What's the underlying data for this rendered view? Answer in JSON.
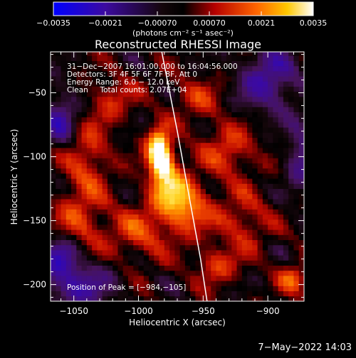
{
  "chart_data": {
    "type": "heatmap",
    "title": "Reconstructed RHESSI Image",
    "xlabel": "Heliocentric X (arcsec)",
    "ylabel": "Heliocentric Y (arcsec)",
    "xlim": [
      -1068,
      -872
    ],
    "ylim": [
      -213,
      -18
    ],
    "x_ticks": [
      -1050,
      -1000,
      -950,
      -900
    ],
    "y_ticks": [
      -50,
      -100,
      -150,
      -200
    ],
    "x_tick_labels": [
      "−1050",
      "−1000",
      "−950",
      "−900"
    ],
    "y_tick_labels": [
      "−50",
      "−100",
      "−150",
      "−200"
    ],
    "colorbar": {
      "min": -0.0035,
      "max": 0.0035,
      "ticks": [
        "−0.0035",
        "−0.0021",
        "−0.00070",
        "0.00070",
        "0.0021",
        "0.0035"
      ],
      "units_label": "(photons cm⁻² s⁻¹ asec⁻²)"
    },
    "annotations": [
      "31−Dec−2007 16:01:00.000 to 16:04:56.000",
      "Detectors: 3F 4F 5F 6F 7F 8F, Att 0",
      "Energy Range: 6.0 − 12.0 keV",
      "Clean     Total counts: 2.07E+04"
    ],
    "peak_label": "Position of Peak = [−984,−105]",
    "peak": [
      -984,
      -105
    ],
    "limb_curve": [
      [
        -982,
        -18
      ],
      [
        -970,
        -80
      ],
      [
        -961,
        -130
      ],
      [
        -952,
        -180
      ],
      [
        -947,
        -213
      ]
    ],
    "sources": [
      {
        "x": -982,
        "y": -103,
        "amp": 0.0035,
        "sx": 7,
        "sy": 12
      },
      {
        "x": -985,
        "y": -90,
        "amp": 0.0022,
        "sx": 6,
        "sy": 10
      },
      {
        "x": -965,
        "y": -140,
        "amp": 0.0022,
        "sx": 14,
        "sy": 14
      },
      {
        "x": -975,
        "y": -125,
        "amp": 0.0016,
        "sx": 12,
        "sy": 12
      },
      {
        "x": -1040,
        "y": -100,
        "amp": 0.0015,
        "sx": 12,
        "sy": 20
      },
      {
        "x": -1045,
        "y": -150,
        "amp": 0.0014,
        "sx": 14,
        "sy": 18
      },
      {
        "x": -1000,
        "y": -160,
        "amp": 0.0014,
        "sx": 16,
        "sy": 14
      },
      {
        "x": -930,
        "y": -95,
        "amp": 0.0015,
        "sx": 14,
        "sy": 14
      },
      {
        "x": -920,
        "y": -150,
        "amp": 0.0013,
        "sx": 14,
        "sy": 16
      },
      {
        "x": -940,
        "y": -185,
        "amp": 0.0014,
        "sx": 12,
        "sy": 10
      },
      {
        "x": -880,
        "y": -195,
        "amp": 0.0017,
        "sx": 8,
        "sy": 8
      },
      {
        "x": -955,
        "y": -55,
        "amp": 0.0011,
        "sx": 14,
        "sy": 12
      },
      {
        "x": -1020,
        "y": -55,
        "amp": 0.0012,
        "sx": 12,
        "sy": 12
      },
      {
        "x": -1060,
        "y": -70,
        "amp": -0.0018,
        "sx": 10,
        "sy": 16
      },
      {
        "x": -1050,
        "y": -200,
        "amp": -0.002,
        "sx": 20,
        "sy": 14
      },
      {
        "x": -900,
        "y": -40,
        "amp": -0.002,
        "sx": 16,
        "sy": 18
      },
      {
        "x": -875,
        "y": -100,
        "amp": -0.0015,
        "sx": 8,
        "sy": 20
      },
      {
        "x": -1060,
        "y": -175,
        "amp": -0.0018,
        "sx": 10,
        "sy": 10
      }
    ]
  },
  "footer_date": "7−May−2022 14:03"
}
